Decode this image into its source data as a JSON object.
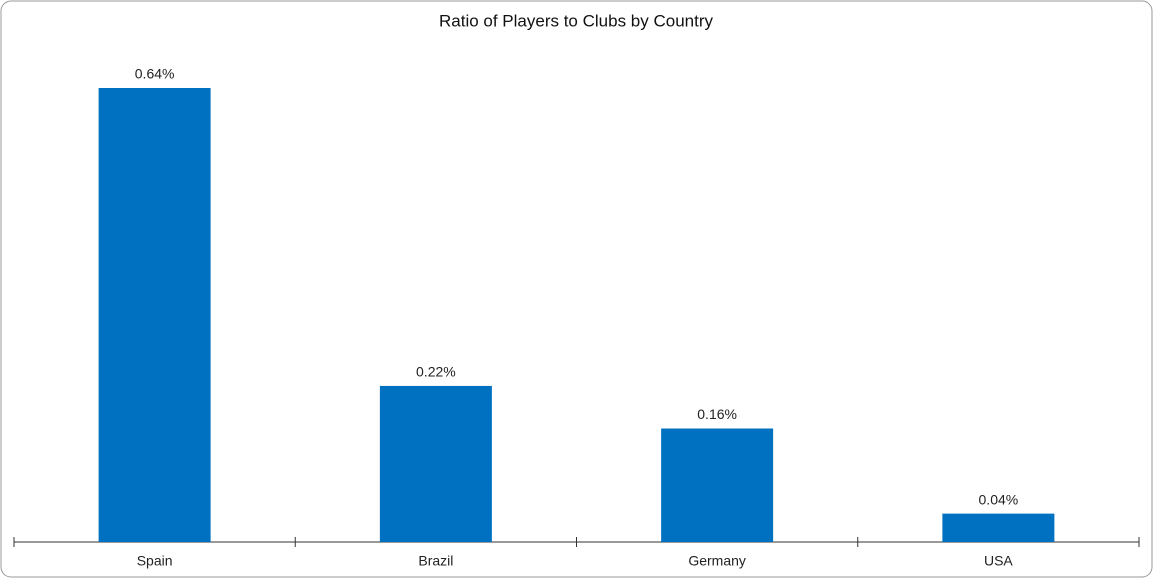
{
  "chart_data": {
    "type": "bar",
    "title": "Ratio of Players to Clubs by Country",
    "categories": [
      "Spain",
      "Brazil",
      "Germany",
      "USA"
    ],
    "values": [
      0.64,
      0.22,
      0.16,
      0.04
    ],
    "value_labels": [
      "0.64%",
      "0.22%",
      "0.16%",
      "0.04%"
    ],
    "color": "#0070c0"
  }
}
